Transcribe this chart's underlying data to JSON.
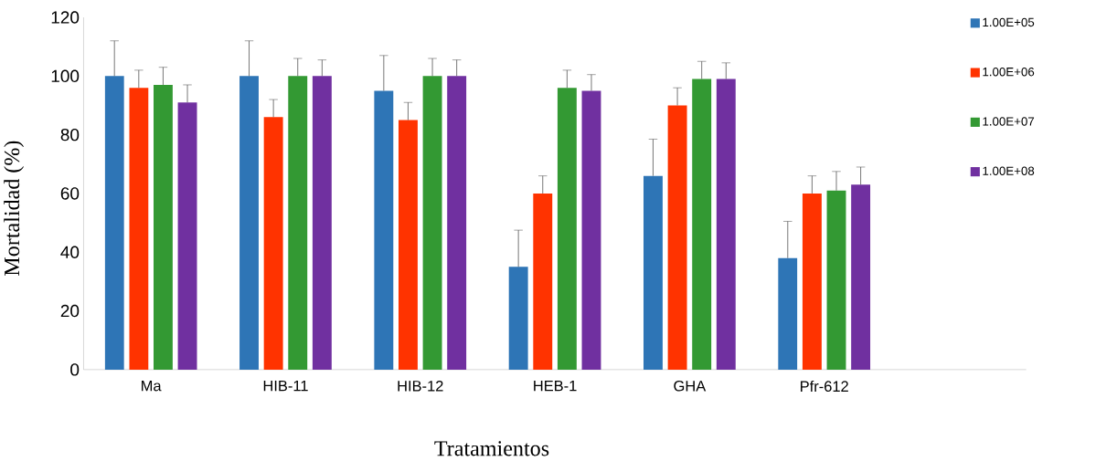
{
  "chart_data": {
    "type": "bar",
    "xlabel": "Tratamientos",
    "ylabel": "Mortalidad (%)",
    "categories": [
      "Ma",
      "HIB-11",
      "HIB-12",
      "HEB-1",
      "GHA",
      "Pfr-612",
      null
    ],
    "ylim": [
      0,
      120
    ],
    "yticks": [
      0,
      20,
      40,
      60,
      80,
      100,
      120
    ],
    "legend": "right",
    "grid": false,
    "series": [
      {
        "name": "1.00E+05",
        "color": "#2e75b6",
        "values": [
          100,
          100,
          95,
          35,
          66,
          38,
          null
        ],
        "errors": [
          [
            100,
            112
          ],
          [
            100,
            112
          ],
          [
            95,
            107
          ],
          [
            35,
            47.5
          ],
          [
            66,
            78.5
          ],
          [
            38,
            50.5
          ],
          null
        ]
      },
      {
        "name": "1.00E+06",
        "color": "#ff3300",
        "values": [
          96,
          86,
          85,
          60,
          90,
          60,
          null
        ],
        "errors": [
          [
            96,
            102
          ],
          [
            86,
            92
          ],
          [
            85,
            91
          ],
          [
            60,
            66
          ],
          [
            90,
            96
          ],
          [
            60,
            66
          ],
          null
        ]
      },
      {
        "name": "1.00E+07",
        "color": "#339933",
        "values": [
          97,
          100,
          100,
          96,
          99,
          61,
          null
        ],
        "errors": [
          [
            97,
            103
          ],
          [
            100,
            106
          ],
          [
            100,
            106
          ],
          [
            96,
            102
          ],
          [
            99,
            105
          ],
          [
            61,
            67.5
          ],
          null
        ]
      },
      {
        "name": "1.00E+08",
        "color": "#7030a0",
        "values": [
          91,
          100,
          100,
          95,
          99,
          63,
          null
        ],
        "errors": [
          [
            91,
            97
          ],
          [
            100,
            105.5
          ],
          [
            100,
            105.5
          ],
          [
            95,
            100.5
          ],
          [
            99,
            104.5
          ],
          [
            63,
            69
          ],
          null
        ]
      }
    ]
  }
}
